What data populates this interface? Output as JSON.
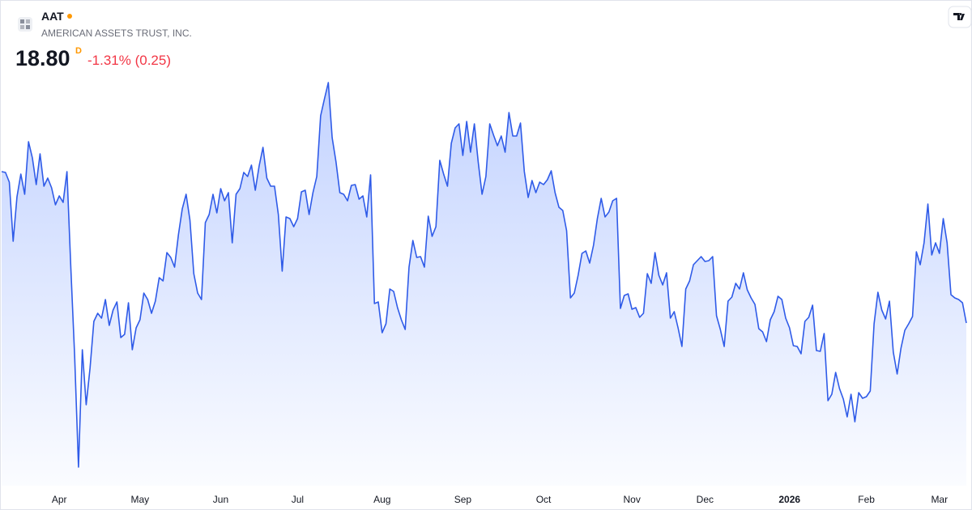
{
  "header": {
    "symbol": "AAT",
    "name": "AMERICAN ASSETS TRUST, INC.",
    "price": "18.80",
    "price_flag": "D",
    "change": "-1.31% (0.25)"
  },
  "chart_data": {
    "type": "area",
    "color": "#2f5be8",
    "ylim": [
      16.79,
      22.79
    ],
    "categories": [
      null,
      null,
      null,
      null,
      null,
      null,
      null,
      null,
      null,
      null,
      null,
      null,
      null,
      null,
      null,
      "Apr",
      null,
      null,
      null,
      null,
      null,
      null,
      null,
      null,
      null,
      null,
      null,
      null,
      null,
      null,
      null,
      null,
      null,
      null,
      null,
      null,
      "May",
      null,
      null,
      null,
      null,
      null,
      null,
      null,
      null,
      null,
      null,
      null,
      null,
      null,
      null,
      null,
      null,
      null,
      null,
      null,
      null,
      "Jun",
      null,
      null,
      null,
      null,
      null,
      null,
      null,
      null,
      null,
      null,
      null,
      null,
      null,
      null,
      null,
      null,
      null,
      null,
      null,
      "Jul",
      null,
      null,
      null,
      null,
      null,
      null,
      null,
      null,
      null,
      null,
      null,
      null,
      null,
      null,
      null,
      null,
      null,
      null,
      null,
      null,
      null,
      "Aug",
      null,
      null,
      null,
      null,
      null,
      null,
      null,
      null,
      null,
      null,
      null,
      null,
      null,
      null,
      null,
      null,
      null,
      null,
      null,
      null,
      "Sep",
      null,
      null,
      null,
      null,
      null,
      null,
      null,
      null,
      null,
      null,
      null,
      null,
      null,
      null,
      null,
      null,
      null,
      null,
      null,
      null,
      "Oct",
      null,
      null,
      null,
      null,
      null,
      null,
      null,
      null,
      null,
      null,
      null,
      null,
      null,
      null,
      null,
      null,
      null,
      null,
      null,
      null,
      null,
      null,
      "Nov",
      null,
      null,
      null,
      null,
      null,
      null,
      null,
      null,
      null,
      null,
      null,
      null,
      null,
      null,
      null,
      null,
      null,
      null,
      "Dec",
      null,
      null,
      null,
      null,
      null,
      null,
      null,
      null,
      null,
      null,
      null,
      null,
      null,
      null,
      null,
      null,
      null,
      null,
      null,
      null,
      null,
      "2026",
      null,
      null,
      null,
      null,
      null,
      null,
      null,
      null,
      null,
      null,
      null,
      null,
      null,
      null,
      null,
      null,
      null,
      null,
      null,
      "Feb",
      null,
      null,
      null,
      null,
      null,
      null,
      null,
      null,
      null,
      null,
      null,
      null,
      null,
      null,
      null,
      null,
      null,
      null,
      "Mar",
      null,
      null,
      null,
      null,
      null,
      null,
      null
    ],
    "values": [
      20.67,
      20.66,
      20.54,
      19.81,
      20.36,
      20.64,
      20.39,
      21.04,
      20.84,
      20.51,
      20.89,
      20.49,
      20.59,
      20.47,
      20.26,
      20.37,
      20.29,
      20.67,
      19.49,
      18.39,
      17.02,
      18.47,
      17.79,
      18.24,
      18.82,
      18.92,
      18.86,
      19.09,
      18.77,
      18.96,
      19.06,
      18.62,
      18.66,
      19.05,
      18.47,
      18.74,
      18.84,
      19.17,
      19.09,
      18.92,
      19.07,
      19.36,
      19.32,
      19.67,
      19.61,
      19.49,
      19.89,
      20.21,
      20.39,
      20.07,
      19.41,
      19.17,
      19.09,
      20.04,
      20.14,
      20.39,
      20.16,
      20.46,
      20.31,
      20.41,
      19.79,
      20.39,
      20.46,
      20.66,
      20.61,
      20.75,
      20.44,
      20.74,
      20.97,
      20.59,
      20.49,
      20.49,
      20.14,
      19.44,
      20.11,
      20.09,
      19.99,
      20.09,
      20.42,
      20.44,
      20.14,
      20.41,
      20.61,
      21.36,
      21.57,
      21.77,
      21.09,
      20.79,
      20.41,
      20.39,
      20.31,
      20.5,
      20.51,
      20.33,
      20.37,
      20.11,
      20.63,
      19.04,
      19.06,
      18.68,
      18.79,
      19.22,
      19.19,
      18.99,
      18.84,
      18.72,
      19.49,
      19.82,
      19.61,
      19.62,
      19.49,
      20.12,
      19.87,
      19.99,
      20.81,
      20.64,
      20.49,
      21.02,
      21.21,
      21.26,
      20.87,
      21.29,
      20.91,
      21.26,
      20.79,
      20.39,
      20.61,
      21.26,
      21.12,
      20.99,
      21.11,
      20.91,
      21.4,
      21.11,
      21.11,
      21.27,
      20.67,
      20.35,
      20.56,
      20.41,
      20.54,
      20.51,
      20.57,
      20.68,
      20.41,
      20.23,
      20.19,
      19.94,
      19.11,
      19.17,
      19.39,
      19.66,
      19.69,
      19.54,
      19.76,
      20.09,
      20.34,
      20.11,
      20.17,
      20.31,
      20.34,
      18.98,
      19.14,
      19.16,
      18.97,
      18.99,
      18.87,
      18.92,
      19.41,
      19.29,
      19.67,
      19.39,
      19.27,
      19.42,
      18.86,
      18.94,
      18.74,
      18.51,
      19.22,
      19.32,
      19.52,
      19.57,
      19.62,
      19.56,
      19.57,
      19.62,
      18.89,
      18.72,
      18.51,
      19.07,
      19.12,
      19.29,
      19.22,
      19.42,
      19.21,
      19.11,
      19.03,
      18.73,
      18.69,
      18.57,
      18.84,
      18.94,
      19.13,
      19.09,
      18.86,
      18.74,
      18.52,
      18.51,
      18.42,
      18.82,
      18.87,
      19.02,
      18.46,
      18.45,
      18.67,
      17.84,
      17.92,
      18.19,
      17.99,
      17.86,
      17.64,
      17.92,
      17.58,
      17.94,
      17.87,
      17.89,
      17.96,
      18.79,
      19.18,
      18.96,
      18.85,
      19.07,
      18.44,
      18.17,
      18.49,
      18.71,
      18.79,
      18.88,
      19.68,
      19.52,
      19.79,
      20.27,
      19.64,
      19.79,
      19.66,
      20.09,
      19.79,
      19.15,
      19.11,
      19.09,
      19.05,
      18.8
    ]
  }
}
